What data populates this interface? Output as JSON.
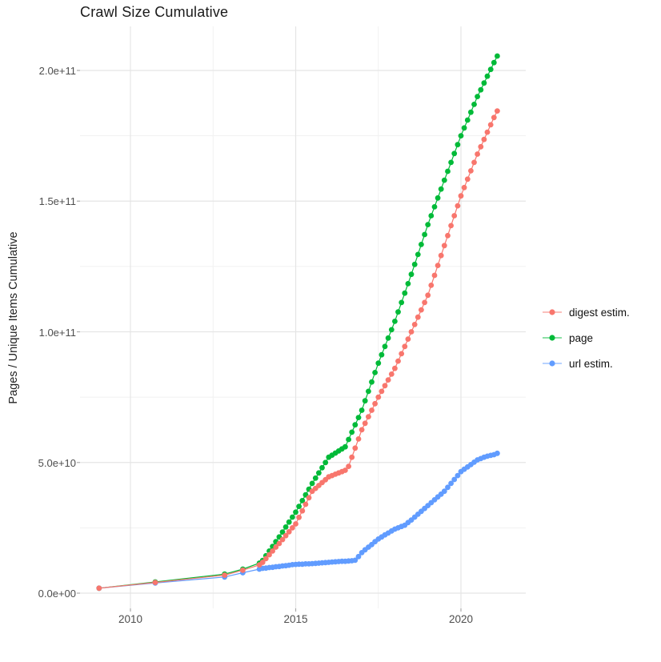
{
  "chart_data": {
    "type": "line",
    "title": "Crawl Size Cumulative",
    "xlabel": "",
    "ylabel": "Pages / Unique Items Cumulative",
    "value_unit": "billions of pages (1e9); y tick labels shown in scientific notation",
    "grid": true,
    "legend_position": "right-center",
    "xlim": [
      2008.5,
      2021.9
    ],
    "ylim_e9": [
      -6,
      217
    ],
    "x_ticks": [
      {
        "label": "2010",
        "year": 2010
      },
      {
        "label": "2015",
        "year": 2015
      },
      {
        "label": "2020",
        "year": 2020
      }
    ],
    "x_minor_years": [
      2012.5,
      2017.5
    ],
    "y_ticks": [
      {
        "label": "0.0e+00",
        "value": 0
      },
      {
        "label": "5.0e+10",
        "value": 50
      },
      {
        "label": "1.0e+11",
        "value": 100
      },
      {
        "label": "1.5e+11",
        "value": 150
      },
      {
        "label": "2.0e+11",
        "value": 200
      }
    ],
    "y_minor_values": [
      25,
      75,
      125,
      175
    ],
    "draw_order": [
      "page",
      "url estim.",
      "digest estim."
    ],
    "series": [
      {
        "name": "digest estim.",
        "color": "#F8766D",
        "points": [
          [
            2009.05,
            1.9
          ],
          [
            2010.75,
            4.1
          ],
          [
            2012.85,
            6.9
          ],
          [
            2013.4,
            8.8
          ],
          [
            2013.9,
            10.8
          ],
          [
            2014,
            11.8
          ],
          [
            2014.1,
            13.2
          ],
          [
            2014.2,
            14.7
          ],
          [
            2014.3,
            16.1
          ],
          [
            2014.4,
            17.6
          ],
          [
            2014.5,
            19
          ],
          [
            2014.6,
            20.5
          ],
          [
            2014.7,
            22
          ],
          [
            2014.8,
            23.5
          ],
          [
            2014.9,
            25
          ],
          [
            2015,
            26.5
          ],
          [
            2015.1,
            29
          ],
          [
            2015.2,
            31.5
          ],
          [
            2015.3,
            34
          ],
          [
            2015.4,
            36.5
          ],
          [
            2015.5,
            39
          ],
          [
            2015.6,
            40.1
          ],
          [
            2015.7,
            41.2
          ],
          [
            2015.8,
            42.3
          ],
          [
            2015.9,
            43.4
          ],
          [
            2016,
            44.5
          ],
          [
            2016.1,
            45
          ],
          [
            2016.2,
            45.5
          ],
          [
            2016.3,
            46
          ],
          [
            2016.4,
            46.5
          ],
          [
            2016.5,
            47
          ],
          [
            2016.6,
            48.5
          ],
          [
            2016.7,
            52
          ],
          [
            2016.8,
            55.5
          ],
          [
            2016.9,
            59
          ],
          [
            2017,
            62.5
          ],
          [
            2017.1,
            65
          ],
          [
            2017.2,
            67.5
          ],
          [
            2017.3,
            70
          ],
          [
            2017.4,
            72.5
          ],
          [
            2017.5,
            75
          ],
          [
            2017.6,
            77.2
          ],
          [
            2017.7,
            79.4
          ],
          [
            2017.8,
            81.6
          ],
          [
            2017.9,
            83.8
          ],
          [
            2018,
            86
          ],
          [
            2018.1,
            88.8
          ],
          [
            2018.2,
            91.6
          ],
          [
            2018.3,
            94.4
          ],
          [
            2018.4,
            97.2
          ],
          [
            2018.5,
            100
          ],
          [
            2018.6,
            102.8
          ],
          [
            2018.7,
            105.6
          ],
          [
            2018.8,
            108.4
          ],
          [
            2018.9,
            111.2
          ],
          [
            2019,
            114
          ],
          [
            2019.1,
            117.8
          ],
          [
            2019.2,
            121.6
          ],
          [
            2019.3,
            125.4
          ],
          [
            2019.4,
            129.2
          ],
          [
            2019.5,
            133
          ],
          [
            2019.6,
            136.8
          ],
          [
            2019.7,
            140.6
          ],
          [
            2019.8,
            144.4
          ],
          [
            2019.9,
            148.2
          ],
          [
            2020,
            152
          ],
          [
            2020.1,
            155.2
          ],
          [
            2020.2,
            158.4
          ],
          [
            2020.3,
            161.6
          ],
          [
            2020.4,
            164.8
          ],
          [
            2020.5,
            168
          ],
          [
            2020.6,
            170.8
          ],
          [
            2020.7,
            173.6
          ],
          [
            2020.8,
            176.4
          ],
          [
            2020.9,
            179.2
          ],
          [
            2021,
            182
          ],
          [
            2021.1,
            184.5
          ]
        ]
      },
      {
        "name": "page",
        "color": "#00BA38",
        "points": [
          [
            2009.05,
            1.9
          ],
          [
            2010.75,
            4.3
          ],
          [
            2012.85,
            7.3
          ],
          [
            2013.4,
            9.2
          ],
          [
            2013.9,
            11.5
          ],
          [
            2014,
            12.5
          ],
          [
            2014.1,
            14.3
          ],
          [
            2014.2,
            16.1
          ],
          [
            2014.3,
            17.9
          ],
          [
            2014.4,
            19.7
          ],
          [
            2014.5,
            21.5
          ],
          [
            2014.6,
            23.4
          ],
          [
            2014.7,
            25.3
          ],
          [
            2014.8,
            27.2
          ],
          [
            2014.9,
            29.1
          ],
          [
            2015,
            31
          ],
          [
            2015.1,
            33.2
          ],
          [
            2015.2,
            35.4
          ],
          [
            2015.3,
            37.6
          ],
          [
            2015.4,
            39.8
          ],
          [
            2015.5,
            42
          ],
          [
            2015.6,
            44
          ],
          [
            2015.7,
            46
          ],
          [
            2015.8,
            48
          ],
          [
            2015.9,
            50
          ],
          [
            2016,
            52
          ],
          [
            2016.1,
            52.8
          ],
          [
            2016.2,
            53.6
          ],
          [
            2016.3,
            54.4
          ],
          [
            2016.4,
            55.2
          ],
          [
            2016.5,
            56
          ],
          [
            2016.6,
            58.8
          ],
          [
            2016.7,
            61.6
          ],
          [
            2016.8,
            64.4
          ],
          [
            2016.9,
            67.2
          ],
          [
            2017,
            70
          ],
          [
            2017.1,
            73.6
          ],
          [
            2017.2,
            77.2
          ],
          [
            2017.3,
            80.8
          ],
          [
            2017.4,
            84.4
          ],
          [
            2017.5,
            88
          ],
          [
            2017.6,
            91.2
          ],
          [
            2017.7,
            94.4
          ],
          [
            2017.8,
            97.6
          ],
          [
            2017.9,
            100.8
          ],
          [
            2018,
            104
          ],
          [
            2018.1,
            107.6
          ],
          [
            2018.2,
            111.2
          ],
          [
            2018.3,
            114.8
          ],
          [
            2018.4,
            118.4
          ],
          [
            2018.5,
            122
          ],
          [
            2018.6,
            125.8
          ],
          [
            2018.7,
            129.6
          ],
          [
            2018.8,
            133.4
          ],
          [
            2018.9,
            137.2
          ],
          [
            2019,
            141
          ],
          [
            2019.1,
            144.4
          ],
          [
            2019.2,
            147.8
          ],
          [
            2019.3,
            151.2
          ],
          [
            2019.4,
            154.6
          ],
          [
            2019.5,
            158
          ],
          [
            2019.6,
            161.4
          ],
          [
            2019.7,
            164.8
          ],
          [
            2019.8,
            168.2
          ],
          [
            2019.9,
            171.6
          ],
          [
            2020,
            175
          ],
          [
            2020.1,
            178
          ],
          [
            2020.2,
            181
          ],
          [
            2020.3,
            184
          ],
          [
            2020.4,
            187
          ],
          [
            2020.5,
            190
          ],
          [
            2020.6,
            192.6
          ],
          [
            2020.7,
            195.2
          ],
          [
            2020.8,
            197.8
          ],
          [
            2020.9,
            200.4
          ],
          [
            2021,
            203
          ],
          [
            2021.1,
            205.5
          ]
        ]
      },
      {
        "name": "url estim.",
        "color": "#619CFF",
        "points": [
          [
            2009.05,
            1.9
          ],
          [
            2010.75,
            3.9
          ],
          [
            2012.85,
            6.2
          ],
          [
            2013.4,
            7.8
          ],
          [
            2013.9,
            9.2
          ],
          [
            2014,
            9.5
          ],
          [
            2014.1,
            9.6
          ],
          [
            2014.2,
            9.8
          ],
          [
            2014.3,
            9.9
          ],
          [
            2014.4,
            10.1
          ],
          [
            2014.5,
            10.2
          ],
          [
            2014.6,
            10.4
          ],
          [
            2014.7,
            10.5
          ],
          [
            2014.8,
            10.7
          ],
          [
            2014.9,
            10.9
          ],
          [
            2015,
            11
          ],
          [
            2015.1,
            11.1
          ],
          [
            2015.2,
            11.1
          ],
          [
            2015.3,
            11.2
          ],
          [
            2015.4,
            11.2
          ],
          [
            2015.5,
            11.3
          ],
          [
            2015.6,
            11.4
          ],
          [
            2015.7,
            11.5
          ],
          [
            2015.8,
            11.6
          ],
          [
            2015.9,
            11.7
          ],
          [
            2016,
            11.8
          ],
          [
            2016.1,
            11.9
          ],
          [
            2016.2,
            12
          ],
          [
            2016.3,
            12.1
          ],
          [
            2016.4,
            12.2
          ],
          [
            2016.5,
            12.2
          ],
          [
            2016.6,
            12.3
          ],
          [
            2016.7,
            12.4
          ],
          [
            2016.8,
            12.6
          ],
          [
            2016.9,
            14
          ],
          [
            2017,
            15.5
          ],
          [
            2017.1,
            16.6
          ],
          [
            2017.2,
            17.6
          ],
          [
            2017.3,
            18.6
          ],
          [
            2017.4,
            19.7
          ],
          [
            2017.5,
            20.7
          ],
          [
            2017.6,
            21.5
          ],
          [
            2017.7,
            22.3
          ],
          [
            2017.8,
            23
          ],
          [
            2017.9,
            23.8
          ],
          [
            2018,
            24.5
          ],
          [
            2018.1,
            25
          ],
          [
            2018.2,
            25.5
          ],
          [
            2018.3,
            26
          ],
          [
            2018.4,
            27
          ],
          [
            2018.5,
            28
          ],
          [
            2018.6,
            29.1
          ],
          [
            2018.7,
            30.2
          ],
          [
            2018.8,
            31.3
          ],
          [
            2018.9,
            32.4
          ],
          [
            2019,
            33.5
          ],
          [
            2019.1,
            34.6
          ],
          [
            2019.2,
            35.7
          ],
          [
            2019.3,
            36.8
          ],
          [
            2019.4,
            37.9
          ],
          [
            2019.5,
            39
          ],
          [
            2019.6,
            40.5
          ],
          [
            2019.7,
            42
          ],
          [
            2019.8,
            43.5
          ],
          [
            2019.9,
            45
          ],
          [
            2020,
            46.5
          ],
          [
            2020.1,
            47.4
          ],
          [
            2020.2,
            48.3
          ],
          [
            2020.3,
            49.2
          ],
          [
            2020.4,
            50.1
          ],
          [
            2020.5,
            51
          ],
          [
            2020.6,
            51.5
          ],
          [
            2020.7,
            52
          ],
          [
            2020.8,
            52.4
          ],
          [
            2020.9,
            52.7
          ],
          [
            2021,
            53
          ],
          [
            2021.1,
            53.5
          ]
        ]
      }
    ]
  }
}
